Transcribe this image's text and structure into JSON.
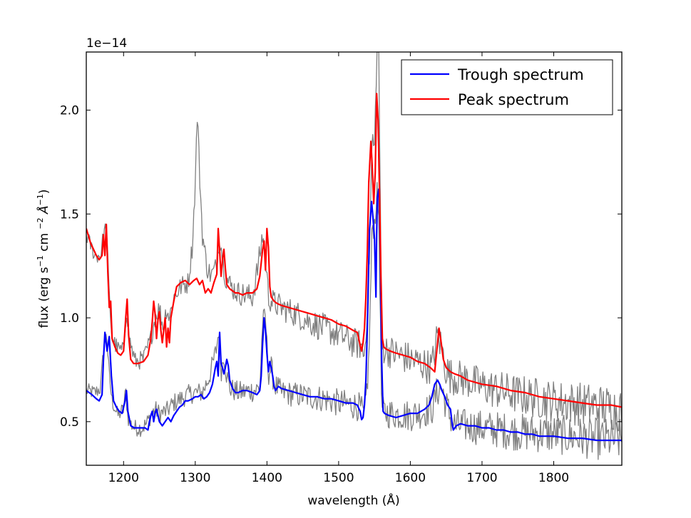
{
  "chart_data": {
    "type": "line",
    "title": "",
    "xlabel": "wavelength (Å)",
    "ylabel_parts": {
      "main": "flux (erg s",
      "sup1": "−1",
      "mid": " cm ",
      "sup2": "−2",
      "unit": " Å",
      "sup3": "−1",
      "close": ")"
    },
    "offset_text": "1e−14",
    "xlim": [
      1148,
      1895
    ],
    "ylim": [
      0.29,
      2.28
    ],
    "x_ticks": [
      1200,
      1300,
      1400,
      1500,
      1600,
      1700,
      1800
    ],
    "x_tick_labels": [
      "1200",
      "1300",
      "1400",
      "1500",
      "1600",
      "1700",
      "1800"
    ],
    "y_ticks": [
      0.5,
      1.0,
      1.5,
      2.0
    ],
    "y_tick_labels": [
      "0.5",
      "1.0",
      "1.5",
      "2.0"
    ],
    "grid": false,
    "legend_position": "top-right",
    "series": [
      {
        "name": "Observed trough (noisy)",
        "color": "#808080",
        "in_legend": false,
        "noise": 0.07,
        "x": [
          1148,
          1160,
          1168,
          1172,
          1176,
          1180,
          1184,
          1192,
          1200,
          1203,
          1206,
          1210,
          1215,
          1220,
          1226,
          1232,
          1238,
          1244,
          1250,
          1260,
          1270,
          1280,
          1290,
          1300,
          1310,
          1320,
          1326,
          1330,
          1333,
          1336,
          1340,
          1344,
          1348,
          1360,
          1380,
          1390,
          1394,
          1398,
          1402,
          1406,
          1410,
          1420,
          1440,
          1460,
          1480,
          1500,
          1520,
          1530,
          1536,
          1542,
          1547,
          1550,
          1553,
          1556,
          1560,
          1570,
          1600,
          1630,
          1638,
          1644,
          1650,
          1656,
          1662,
          1680,
          1700,
          1750,
          1800,
          1850,
          1895
        ],
        "y": [
          0.65,
          0.64,
          0.66,
          0.85,
          0.94,
          0.72,
          0.6,
          0.53,
          0.56,
          0.65,
          0.52,
          0.49,
          0.47,
          0.47,
          0.47,
          0.49,
          0.53,
          0.56,
          0.54,
          0.55,
          0.59,
          0.61,
          0.63,
          0.64,
          0.64,
          0.72,
          0.8,
          0.86,
          0.95,
          0.74,
          0.82,
          0.72,
          0.66,
          0.64,
          0.65,
          0.66,
          0.98,
          1.0,
          0.73,
          0.76,
          0.68,
          0.64,
          0.63,
          0.62,
          0.61,
          0.59,
          0.58,
          0.57,
          0.52,
          0.78,
          1.45,
          1.45,
          1.6,
          1.5,
          0.55,
          0.54,
          0.53,
          0.56,
          0.65,
          0.66,
          0.58,
          0.52,
          0.48,
          0.48,
          0.47,
          0.45,
          0.44,
          0.42,
          0.41
        ]
      },
      {
        "name": "Observed peak (noisy)",
        "color": "#808080",
        "in_legend": false,
        "noise": 0.075,
        "x": [
          1148,
          1160,
          1168,
          1172,
          1176,
          1180,
          1184,
          1192,
          1200,
          1204,
          1208,
          1216,
          1228,
          1238,
          1244,
          1250,
          1255,
          1260,
          1264,
          1270,
          1280,
          1290,
          1296,
          1300,
          1303,
          1306,
          1310,
          1316,
          1322,
          1330,
          1334,
          1338,
          1342,
          1350,
          1360,
          1380,
          1390,
          1394,
          1398,
          1402,
          1410,
          1420,
          1440,
          1460,
          1480,
          1500,
          1520,
          1530,
          1536,
          1542,
          1547,
          1550,
          1553,
          1556,
          1560,
          1570,
          1600,
          1630,
          1638,
          1644,
          1650,
          1656,
          1680,
          1700,
          1750,
          1800,
          1850,
          1895
        ],
        "y": [
          1.4,
          1.3,
          1.3,
          1.4,
          1.44,
          1.1,
          0.9,
          0.85,
          0.84,
          1.05,
          0.9,
          0.79,
          0.8,
          0.9,
          1.0,
          1.05,
          0.95,
          1.05,
          1.0,
          1.1,
          1.15,
          1.17,
          1.35,
          1.65,
          2.0,
          1.7,
          1.4,
          1.25,
          1.2,
          1.25,
          1.4,
          1.3,
          1.2,
          1.15,
          1.12,
          1.1,
          1.3,
          1.4,
          1.3,
          1.1,
          1.07,
          1.05,
          1.02,
          0.98,
          0.95,
          0.92,
          0.88,
          0.87,
          0.82,
          1.2,
          1.88,
          1.8,
          2.28,
          2.28,
          0.86,
          0.84,
          0.8,
          0.76,
          0.92,
          0.85,
          0.75,
          0.72,
          0.7,
          0.67,
          0.63,
          0.6,
          0.58,
          0.56
        ]
      },
      {
        "name": "Trough spectrum",
        "color": "#0000ff",
        "in_legend": true,
        "noise": 0,
        "x": [
          1148,
          1156,
          1162,
          1166,
          1170,
          1172,
          1174,
          1177,
          1180,
          1183,
          1186,
          1190,
          1194,
          1198,
          1202,
          1204,
          1206,
          1210,
          1215,
          1222,
          1230,
          1234,
          1236,
          1238,
          1240,
          1242,
          1244,
          1246,
          1250,
          1254,
          1258,
          1262,
          1266,
          1270,
          1274,
          1278,
          1282,
          1286,
          1290,
          1296,
          1300,
          1304,
          1308,
          1312,
          1316,
          1320,
          1324,
          1328,
          1330,
          1332,
          1334,
          1336,
          1338,
          1340,
          1342,
          1344,
          1346,
          1348,
          1352,
          1356,
          1360,
          1366,
          1372,
          1380,
          1386,
          1390,
          1392,
          1394,
          1396,
          1398,
          1400,
          1402,
          1404,
          1406,
          1408,
          1410,
          1412,
          1416,
          1420,
          1430,
          1440,
          1450,
          1460,
          1470,
          1480,
          1490,
          1500,
          1510,
          1520,
          1526,
          1530,
          1532,
          1534,
          1536,
          1538,
          1540,
          1543,
          1546,
          1548,
          1550,
          1552,
          1553,
          1554,
          1556,
          1558,
          1560,
          1562,
          1564,
          1570,
          1580,
          1590,
          1600,
          1610,
          1620,
          1626,
          1630,
          1634,
          1638,
          1641,
          1644,
          1648,
          1652,
          1656,
          1658,
          1660,
          1664,
          1670,
          1680,
          1690,
          1700,
          1710,
          1720,
          1730,
          1740,
          1750,
          1760,
          1770,
          1780,
          1790,
          1800,
          1820,
          1840,
          1860,
          1880,
          1895
        ],
        "y": [
          0.65,
          0.63,
          0.61,
          0.6,
          0.63,
          0.8,
          0.93,
          0.84,
          0.91,
          0.72,
          0.6,
          0.57,
          0.55,
          0.54,
          0.6,
          0.65,
          0.55,
          0.48,
          0.47,
          0.47,
          0.47,
          0.46,
          0.5,
          0.53,
          0.55,
          0.5,
          0.54,
          0.56,
          0.5,
          0.48,
          0.5,
          0.52,
          0.5,
          0.53,
          0.55,
          0.57,
          0.58,
          0.6,
          0.6,
          0.61,
          0.62,
          0.62,
          0.63,
          0.61,
          0.62,
          0.64,
          0.68,
          0.76,
          0.79,
          0.72,
          0.93,
          0.78,
          0.76,
          0.73,
          0.76,
          0.8,
          0.77,
          0.7,
          0.66,
          0.64,
          0.64,
          0.65,
          0.65,
          0.64,
          0.63,
          0.65,
          0.72,
          0.88,
          1.0,
          0.94,
          0.83,
          0.74,
          0.79,
          0.76,
          0.72,
          0.67,
          0.65,
          0.67,
          0.66,
          0.65,
          0.64,
          0.63,
          0.62,
          0.62,
          0.61,
          0.61,
          0.6,
          0.59,
          0.59,
          0.58,
          0.55,
          0.51,
          0.52,
          0.58,
          0.7,
          0.95,
          1.42,
          1.56,
          1.48,
          1.38,
          1.1,
          1.4,
          1.58,
          1.62,
          1.35,
          0.8,
          0.55,
          0.54,
          0.53,
          0.52,
          0.53,
          0.54,
          0.54,
          0.56,
          0.58,
          0.62,
          0.68,
          0.7,
          0.68,
          0.65,
          0.62,
          0.58,
          0.56,
          0.5,
          0.46,
          0.48,
          0.49,
          0.48,
          0.48,
          0.47,
          0.47,
          0.46,
          0.46,
          0.45,
          0.45,
          0.44,
          0.44,
          0.43,
          0.43,
          0.43,
          0.42,
          0.42,
          0.41,
          0.41,
          0.41
        ]
      },
      {
        "name": "Peak spectrum",
        "color": "#ff0000",
        "in_legend": true,
        "noise": 0,
        "x": [
          1148,
          1154,
          1158,
          1162,
          1166,
          1170,
          1172,
          1174,
          1176,
          1178,
          1180,
          1182,
          1184,
          1188,
          1192,
          1196,
          1200,
          1203,
          1205,
          1207,
          1210,
          1214,
          1220,
          1228,
          1234,
          1238,
          1240,
          1242,
          1244,
          1246,
          1248,
          1250,
          1252,
          1254,
          1256,
          1258,
          1260,
          1262,
          1264,
          1266,
          1270,
          1274,
          1280,
          1286,
          1292,
          1298,
          1302,
          1306,
          1310,
          1314,
          1318,
          1322,
          1326,
          1330,
          1332,
          1334,
          1336,
          1338,
          1340,
          1342,
          1344,
          1348,
          1352,
          1356,
          1360,
          1366,
          1372,
          1380,
          1386,
          1390,
          1394,
          1396,
          1398,
          1400,
          1402,
          1404,
          1406,
          1410,
          1414,
          1420,
          1430,
          1440,
          1450,
          1460,
          1470,
          1480,
          1490,
          1500,
          1510,
          1520,
          1526,
          1530,
          1532,
          1534,
          1536,
          1538,
          1540,
          1542,
          1545,
          1547,
          1549,
          1551,
          1553,
          1555,
          1557,
          1559,
          1561,
          1563,
          1566,
          1572,
          1580,
          1590,
          1600,
          1610,
          1620,
          1628,
          1634,
          1638,
          1640,
          1643,
          1646,
          1650,
          1656,
          1662,
          1670,
          1680,
          1690,
          1700,
          1720,
          1740,
          1760,
          1780,
          1800,
          1820,
          1840,
          1860,
          1880,
          1895
        ],
        "y": [
          1.43,
          1.36,
          1.33,
          1.3,
          1.28,
          1.3,
          1.4,
          1.3,
          1.45,
          1.22,
          1.05,
          1.08,
          0.9,
          0.86,
          0.83,
          0.82,
          0.84,
          1.0,
          1.09,
          0.92,
          0.8,
          0.78,
          0.78,
          0.79,
          0.82,
          0.9,
          0.98,
          1.08,
          1.02,
          0.9,
          0.99,
          1.03,
          0.94,
          0.88,
          0.94,
          1.0,
          0.86,
          0.95,
          0.88,
          1.0,
          1.08,
          1.15,
          1.17,
          1.18,
          1.16,
          1.18,
          1.19,
          1.16,
          1.18,
          1.12,
          1.14,
          1.12,
          1.17,
          1.21,
          1.43,
          1.32,
          1.2,
          1.28,
          1.33,
          1.24,
          1.16,
          1.14,
          1.13,
          1.12,
          1.12,
          1.11,
          1.12,
          1.12,
          1.14,
          1.2,
          1.33,
          1.37,
          1.23,
          1.43,
          1.34,
          1.15,
          1.1,
          1.08,
          1.07,
          1.06,
          1.05,
          1.04,
          1.03,
          1.02,
          1.01,
          1.0,
          0.99,
          0.97,
          0.96,
          0.94,
          0.93,
          0.87,
          0.84,
          0.88,
          0.95,
          1.1,
          1.32,
          1.65,
          1.85,
          1.72,
          1.55,
          1.7,
          2.08,
          1.95,
          1.6,
          1.2,
          0.9,
          0.86,
          0.85,
          0.84,
          0.83,
          0.82,
          0.81,
          0.79,
          0.78,
          0.76,
          0.74,
          0.88,
          0.95,
          0.88,
          0.8,
          0.76,
          0.74,
          0.73,
          0.72,
          0.7,
          0.69,
          0.68,
          0.67,
          0.65,
          0.64,
          0.62,
          0.61,
          0.6,
          0.59,
          0.58,
          0.58,
          0.57
        ]
      }
    ]
  }
}
